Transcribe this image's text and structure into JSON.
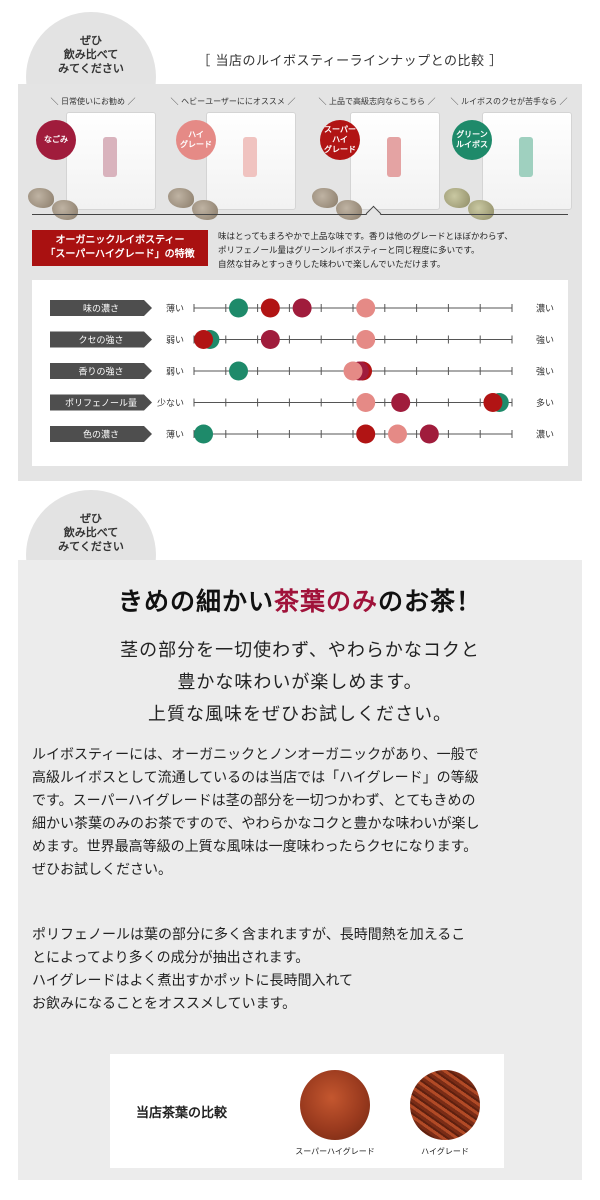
{
  "badge1": {
    "line1": "ぜひ",
    "line2": "飲み比べて",
    "line3": "みてください"
  },
  "badge2": {
    "line1": "ぜひ",
    "line2": "飲み比べて",
    "line3": "みてください"
  },
  "lineup_title": "［ 当店のルイボスティーラインナップとの比較 ］",
  "products": [
    {
      "caption": "＼ 日常使いにお勧め ／",
      "tag": "なごみ",
      "color": "#a01c3c"
    },
    {
      "caption": "＼ ヘビーユーザーににオススメ ／",
      "tag": "ハイ\nグレード",
      "color": "#e58a86"
    },
    {
      "caption": "＼ 上品で高級志向ならこちら ／",
      "tag": "スーパー\nハイ\nグレード",
      "color": "#b11414"
    },
    {
      "caption": "＼ ルイボスのクセが苦手なら ／",
      "tag": "グリーン\nルイボス",
      "color": "#1e8a6a"
    }
  ],
  "feature": {
    "label_line1": "オーガニックルイボスティー",
    "label_line2": "「スーパーハイグレード」の特徴",
    "desc_lines": [
      "味はとってもまろやかで上品な味です。香りは他のグレードとほぼかわらず、",
      "ポリフェノール量はグリーンルイボスティーと同じ程度に多いです。",
      "自然な甘みとすっきりした味わいで楽しんでいただけます。"
    ]
  },
  "chart_data": {
    "type": "scatter",
    "scale": [
      0,
      10
    ],
    "series": [
      {
        "color": "#1e8a6a"
      },
      {
        "color": "#b11414"
      },
      {
        "color": "#a01c3c"
      },
      {
        "color": "#e58a86"
      }
    ],
    "rows": [
      {
        "label": "味の濃さ",
        "left": "薄い",
        "right": "濃い",
        "values": [
          1.4,
          2.4,
          3.4,
          5.4
        ]
      },
      {
        "label": "クセの強さ",
        "left": "弱い",
        "right": "強い",
        "values": [
          0.5,
          0.3,
          2.4,
          5.4
        ]
      },
      {
        "label": "香りの強さ",
        "left": "弱い",
        "right": "強い",
        "values": [
          1.4,
          5.3,
          5.2,
          5.0
        ]
      },
      {
        "label": "ポリフェノール量",
        "left": "少ない",
        "right": "多い",
        "values": [
          9.6,
          9.4,
          6.5,
          5.4
        ]
      },
      {
        "label": "色の濃さ",
        "left": "薄い",
        "right": "濃い",
        "values": [
          0.3,
          5.4,
          7.4,
          6.4
        ]
      }
    ]
  },
  "section2": {
    "headline_pre": "きめの細かい",
    "headline_accent": "茶葉のみ",
    "headline_post": "のお茶！",
    "sub1": "茎の部分を一切使わず、やわらかなコクと",
    "sub2": "豊かな味わいが楽しめます。",
    "sub3": "上質な風味をぜひお試しください。",
    "para1": [
      "ルイボスティーには、オーガニックとノンオーガニックがあり、一般で",
      "高級ルイボスとして流通しているのは当店では「ハイグレード」の等級",
      "です。スーパーハイグレードは茎の部分を一切つかわず、とてもきめの",
      "細かい茶葉のみのお茶ですので、やわらかなコクと豊かな味わいが楽し",
      "めます。世界最高等級の上質な風味は一度味わったらクセになります。",
      "ぜひお試しください。"
    ],
    "para2": [
      "ポリフェノールは葉の部分に多く含まれますが、長時間熱を加えるこ",
      "とによってより多くの成分が抽出されます。",
      "ハイグレードはよく煮出すかポットに長時間入れて",
      "お飲みになることをオススメしています。"
    ],
    "compare_label": "当店茶葉の比較",
    "leaf1_caption": "スーパーハイグレード",
    "leaf2_caption": "ハイグレード"
  }
}
